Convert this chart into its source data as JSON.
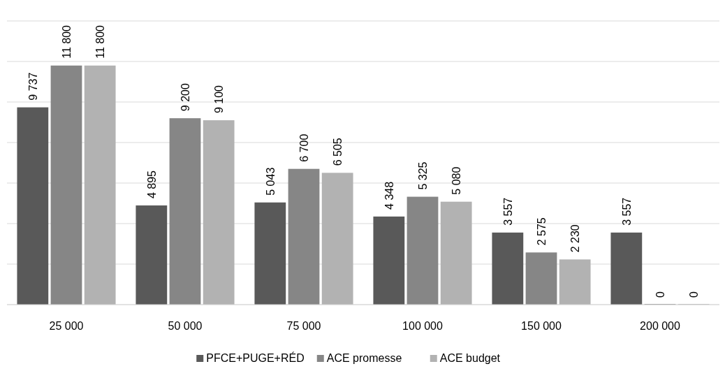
{
  "chart_data": {
    "type": "bar",
    "categories": [
      "25 000",
      "50 000",
      "75 000",
      "100 000",
      "150 000",
      "200 000"
    ],
    "series": [
      {
        "name": "PFCE+PUGE+RÉD",
        "color": "#595959",
        "values": [
          9737,
          4895,
          5043,
          4348,
          3557,
          3557
        ],
        "value_labels": [
          "9 737",
          "4 895",
          "5 043",
          "4 348",
          "3 557",
          "3 557"
        ]
      },
      {
        "name": "ACE promesse",
        "color": "#868686",
        "values": [
          11800,
          9200,
          6700,
          5325,
          2575,
          0
        ],
        "value_labels": [
          "11 800",
          "9 200",
          "6 700",
          "5 325",
          "2 575",
          "0"
        ]
      },
      {
        "name": "ACE budget",
        "color": "#b2b2b2",
        "values": [
          11800,
          9100,
          6505,
          5080,
          2230,
          0
        ],
        "value_labels": [
          "11 800",
          "9 100",
          "6 505",
          "5 080",
          "2 230",
          "0"
        ]
      }
    ],
    "ylim": [
      0,
      14000
    ],
    "yticks": [
      {
        "value": 0,
        "label": null
      },
      {
        "value": 2000,
        "label": null
      },
      {
        "value": 4000,
        "label": null
      },
      {
        "value": 6000,
        "label": null
      },
      {
        "value": 8000,
        "label": null
      },
      {
        "value": 10000,
        "label": null
      },
      {
        "value": 12000,
        "label": null
      },
      {
        "value": 14000,
        "label": null
      }
    ],
    "tick_labels": "x",
    "grid": "y",
    "legend": "bottom"
  }
}
